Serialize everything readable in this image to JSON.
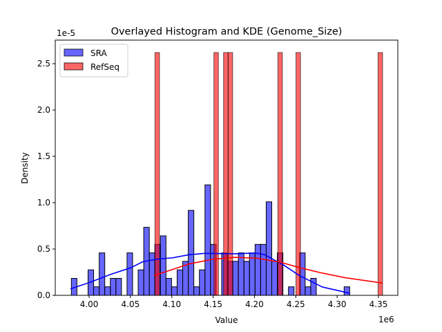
{
  "chart_data": {
    "type": "histogram",
    "title": "Overlayed Histogram and KDE (Genome_Size)",
    "xlabel": "Value",
    "ylabel": "Density",
    "x_offset_label": "1e6",
    "y_offset_label": "1e-5",
    "xlim": [
      3.959,
      4.3734
    ],
    "ylim": [
      0,
      2.754
    ],
    "x_ticks": [
      4.0,
      4.05,
      4.1,
      4.15,
      4.2,
      4.25,
      4.3,
      4.35
    ],
    "x_tick_labels": [
      "4.00",
      "4.05",
      "4.10",
      "4.15",
      "4.20",
      "4.25",
      "4.30",
      "4.35"
    ],
    "y_ticks": [
      0,
      0.5,
      1.0,
      1.5,
      2.0,
      2.5
    ],
    "y_tick_labels": [
      "0.0",
      "0.5",
      "1.0",
      "1.5",
      "2.0",
      "2.5"
    ],
    "grid": false,
    "legend_placement": "top-left",
    "series": [
      {
        "name": "SRA",
        "color": "#0000ff",
        "bin_start": 3.9785,
        "bin_width": 0.006734,
        "densities": [
          0.183,
          0,
          0,
          0.275,
          0.092,
          0.458,
          0.092,
          0.183,
          0.183,
          0,
          0.458,
          0,
          0.275,
          0.734,
          0.458,
          0.55,
          0.642,
          0.183,
          0.092,
          0.275,
          0.367,
          0.917,
          0.092,
          0.275,
          1.192,
          0.55,
          0,
          0.458,
          0.367,
          0.367,
          0.458,
          0.367,
          0.458,
          0.55,
          0.55,
          1.009,
          0.367,
          0.458,
          0,
          0.092,
          0,
          0.458,
          0.092,
          0.183,
          0,
          0,
          0,
          0,
          0,
          0.092
        ],
        "kde": {
          "x": [
            3.9774,
            4.0008,
            4.0259,
            4.051,
            4.0649,
            4.0844,
            4.1011,
            4.1206,
            4.1401,
            4.1763,
            4.2013,
            4.2125,
            4.2264,
            4.2348,
            4.2542,
            4.2821,
            4.3155
          ],
          "y": [
            0.07,
            0.14,
            0.226,
            0.3,
            0.363,
            0.393,
            0.405,
            0.438,
            0.453,
            0.448,
            0.457,
            0.438,
            0.37,
            0.33,
            0.214,
            0.09,
            0.022
          ]
        }
      },
      {
        "name": "RefSeq",
        "color": "#ff0000",
        "bin_width": 0.0055,
        "bins": [
          {
            "start": 4.0796,
            "density": 2.62
          },
          {
            "start": 4.1509,
            "density": 2.62
          },
          {
            "start": 4.1626,
            "density": 2.62
          },
          {
            "start": 4.1681,
            "density": 2.62
          },
          {
            "start": 4.2283,
            "density": 2.62
          },
          {
            "start": 4.2502,
            "density": 2.62
          },
          {
            "start": 4.3495,
            "density": 2.62
          }
        ],
        "kde": {
          "x": [
            4.0783,
            4.1011,
            4.1206,
            4.1485,
            4.1763,
            4.2041,
            4.232,
            4.2542,
            4.2821,
            4.3099,
            4.3551
          ],
          "y": [
            0.214,
            0.28,
            0.338,
            0.388,
            0.41,
            0.4,
            0.356,
            0.3,
            0.24,
            0.19,
            0.132
          ]
        }
      }
    ]
  }
}
